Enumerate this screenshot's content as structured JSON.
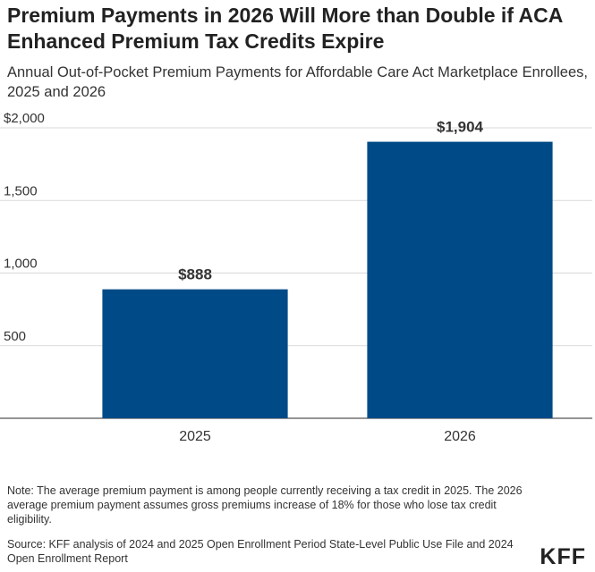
{
  "title": "Premium Payments in 2026 Will More than Double if ACA Enhanced Premium Tax Credits Expire",
  "subtitle": "Annual Out-of-Pocket Premium Payments for Affordable Care Act Marketplace Enrollees, 2025 and 2026",
  "note": "Note: The average premium payment is among people currently receiving a tax credit in 2025. The 2026 average premium payment assumes gross premiums increase of 18% for those who lose tax credit eligibility.",
  "source": "Source: KFF analysis of 2024 and 2025 Open Enrollment Period State-Level Public Use File and 2024 Open Enrollment Report",
  "logo": "KFF",
  "chart_data": {
    "type": "bar",
    "categories": [
      "2025",
      "2026"
    ],
    "values": [
      888,
      1904
    ],
    "data_labels": [
      "$888",
      "$1,904"
    ],
    "ylim": [
      0,
      2000
    ],
    "yticks": [
      500,
      1000,
      1500,
      2000
    ],
    "ytick_labels": [
      "500",
      "1,000",
      "1,500",
      "$2,000"
    ],
    "grid": true,
    "bar_color": "#004b87"
  }
}
